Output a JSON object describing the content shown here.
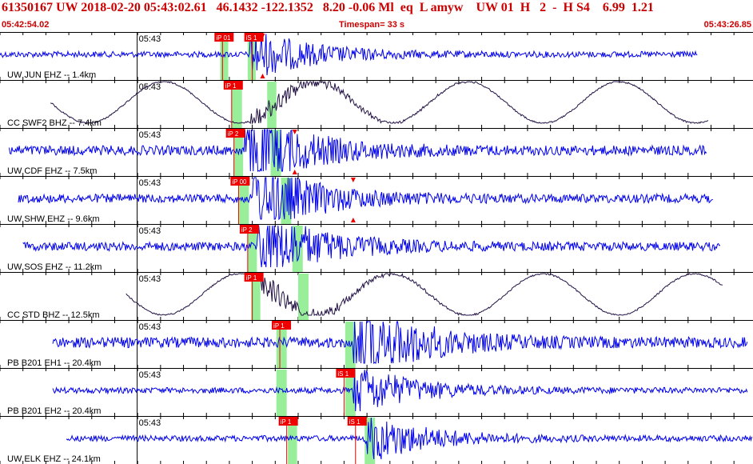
{
  "header": {
    "event_line": "61350167 UW 2018-02-20 05:43:02.61   46.1432 -122.1352   8.20 -0.06 Ml  eq  L amyw    UW 01  H   2  -  H S4    6.99  1.21",
    "start_time": "05:42:54.02",
    "timespan": "Timespan=  33 s",
    "end_time": "05:43:26.85"
  },
  "colors": {
    "trace": "#0000ee",
    "trace_broadband": "#221144",
    "pick_box": "#ee0000",
    "pick_window": "#99ee99",
    "header_text": "#cc0000"
  },
  "chart_data": {
    "type": "line",
    "title": "",
    "xlabel": "",
    "ylabel": "",
    "x_unit": "seconds from 05:42:54.02",
    "xlim": [
      0,
      32.83
    ],
    "minute_tick": {
      "label": "05:43",
      "x": 5.98
    },
    "tick_spacing_s": 1.0,
    "traces": [
      {
        "label": "UW JUN EHZ -- 1.4km",
        "start": 0.0,
        "end": 30.4,
        "amp": 0.06,
        "style": "seismic",
        "onset": 10.9,
        "picks": [
          {
            "label": "iP 01",
            "x": 9.7
          },
          {
            "label": "iS 1",
            "x": 11.0
          }
        ],
        "windows": [
          [
            9.6,
            9.95
          ],
          [
            10.8,
            11.15
          ]
        ],
        "triangles": [
          11.45
        ]
      },
      {
        "label": "CC SWF2 BHZ -- 7.4km",
        "start": 2.2,
        "end": 30.9,
        "amp": 0.18,
        "style": "broadband",
        "onset": 10.9,
        "picks": [
          {
            "label": "iP 1",
            "x": 10.1
          }
        ],
        "windows": [
          [
            10.1,
            10.55
          ],
          [
            11.65,
            12.05
          ]
        ],
        "triangles": []
      },
      {
        "label": "UW CDF EHZ -- 7.5km",
        "start": 0.4,
        "end": 30.8,
        "amp": 0.1,
        "style": "seismic",
        "onset": 10.6,
        "picks": [
          {
            "label": "iP 2",
            "x": 10.2
          }
        ],
        "windows": [
          [
            10.2,
            10.6
          ],
          [
            11.8,
            12.25
          ]
        ],
        "triangles": [
          12.85
        ]
      },
      {
        "label": "UW SHW EHZ -- 9.6km",
        "start": 0.8,
        "end": 31.1,
        "amp": 0.09,
        "style": "seismic",
        "onset": 11.0,
        "picks": [
          {
            "label": "iP 00",
            "x": 10.4
          }
        ],
        "windows": [
          [
            10.4,
            10.85
          ],
          [
            12.25,
            12.7
          ]
        ],
        "triangles": [
          15.4
        ]
      },
      {
        "label": "UW SOS EHZ -- 11.2km",
        "start": 1.0,
        "end": 31.4,
        "amp": 0.09,
        "style": "seismic",
        "onset": 11.2,
        "picks": [
          {
            "label": "iP 2",
            "x": 10.8
          }
        ],
        "windows": [
          [
            10.8,
            11.2
          ],
          [
            12.75,
            13.2
          ]
        ],
        "triangles": []
      },
      {
        "label": "CC STD BHZ -- 12.5km",
        "start": 5.5,
        "end": 31.5,
        "amp": 0.18,
        "style": "broadband",
        "onset": 11.4,
        "picks": [
          {
            "label": "iP 1",
            "x": 11.0
          }
        ],
        "windows": [
          [
            10.95,
            11.35
          ],
          [
            13.0,
            13.45
          ]
        ],
        "triangles": []
      },
      {
        "label": "PB B201 EH1 -- 20.4km",
        "start": 2.3,
        "end": 32.6,
        "amp": 0.11,
        "style": "seismic",
        "onset": 15.4,
        "picks": [
          {
            "label": "iP 1",
            "x": 12.2
          }
        ],
        "windows": [
          [
            12.05,
            12.5
          ],
          [
            15.05,
            15.5
          ]
        ],
        "triangles": []
      },
      {
        "label": "PB B201 EH2 -- 20.4km",
        "start": 2.3,
        "end": 32.6,
        "amp": 0.06,
        "style": "seismic",
        "onset": 15.4,
        "picks": [
          {
            "label": "iS 1",
            "x": 15.0
          }
        ],
        "windows": [
          [
            12.05,
            12.5
          ],
          [
            15.05,
            15.5
          ]
        ],
        "triangles": []
      },
      {
        "label": "UW ELK EHZ -- 24.1km",
        "start": 2.9,
        "end": 32.8,
        "amp": 0.06,
        "style": "seismic",
        "onset": 15.9,
        "picks": [
          {
            "label": "iP 1",
            "x": 12.5
          },
          {
            "label": "iS 1",
            "x": 15.5
          }
        ],
        "windows": [
          [
            12.55,
            12.95
          ],
          [
            15.9,
            16.35
          ]
        ],
        "triangles": []
      }
    ]
  }
}
